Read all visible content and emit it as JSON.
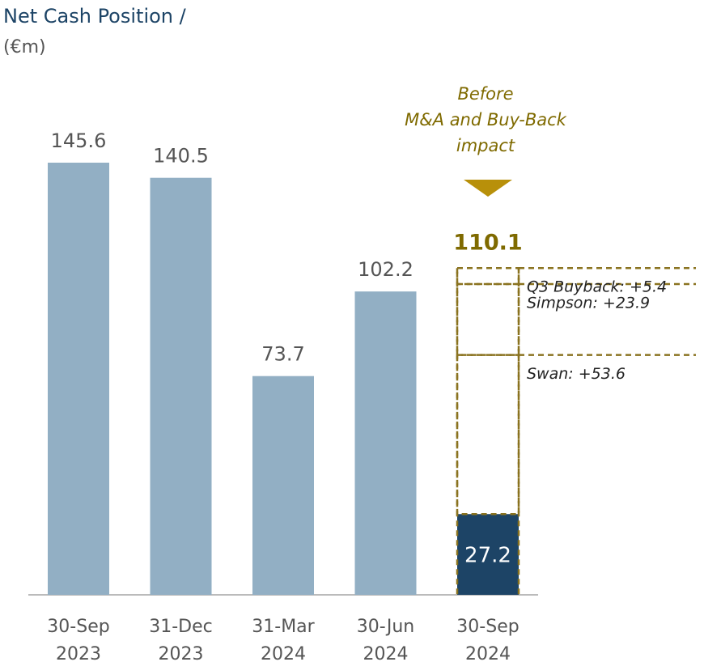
{
  "chart_data": {
    "type": "bar",
    "title": "Net Cash Position /",
    "subtitle": "(€m)",
    "categories": [
      "30-Sep\n2023",
      "31-Dec\n2023",
      "31-Mar\n2024",
      "30-Jun\n2024",
      "30-Sep\n2024"
    ],
    "values": [
      145.6,
      140.5,
      73.7,
      102.2,
      27.2
    ],
    "colors": [
      "#92afc4",
      "#92afc4",
      "#92afc4",
      "#92afc4",
      "#1d4466"
    ],
    "annotation": "Before\nM&A and Buy-Back\nimpact",
    "total": 110.1,
    "breakdown": [
      {
        "label": "Swan: +53.6",
        "value": 53.6
      },
      {
        "label": "Simpson: +23.9",
        "value": 23.9
      },
      {
        "label": "Q3 Buyback: +5.4",
        "value": 5.4
      }
    ]
  }
}
